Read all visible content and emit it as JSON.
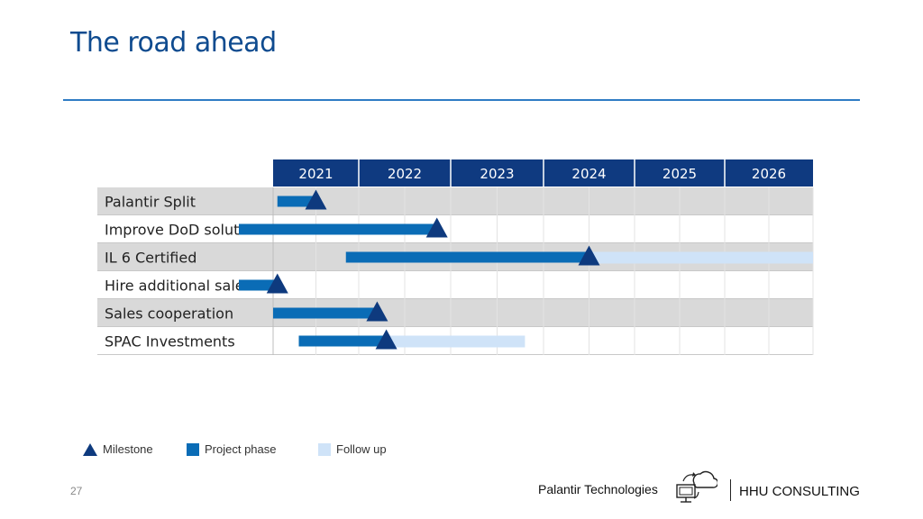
{
  "title": "The road ahead",
  "page_number": "27",
  "footer": {
    "company": "Palantir Technologies",
    "brand": "HHU CONSULTING",
    "logo_icon": "cloud-sync-computer-icon"
  },
  "colors": {
    "header": "#0f3a80",
    "phase": "#0a6cb6",
    "followup": "#cfe3f8",
    "milestone": "#0e3a7e",
    "row_shade": "#d9d9d9"
  },
  "legend": {
    "milestone": "Milestone",
    "phase": "Project phase",
    "followup": "Follow up"
  },
  "chart_data": {
    "type": "gantt",
    "years": [
      "2021",
      "2022",
      "2023",
      "2024",
      "2025",
      "2026"
    ],
    "rows": [
      {
        "label": "Palantir Split",
        "phase": [
          2021.05,
          2021.5
        ],
        "milestone": 2021.5,
        "followup": null
      },
      {
        "label": "Improve DoD solutions",
        "phase": [
          2020.6,
          2022.85
        ],
        "milestone": 2022.85,
        "followup": null
      },
      {
        "label": "IL 6 Certified",
        "phase": [
          2021.85,
          2024.5
        ],
        "milestone": 2024.5,
        "followup": [
          2024.5,
          2027.0
        ]
      },
      {
        "label": "Hire additional sales",
        "phase": [
          2020.6,
          2021.05
        ],
        "milestone": 2021.05,
        "followup": null
      },
      {
        "label": "Sales cooperation",
        "phase": [
          2021.0,
          2022.2
        ],
        "milestone": 2022.2,
        "followup": null
      },
      {
        "label": "SPAC Investments",
        "phase": [
          2021.3,
          2022.3
        ],
        "milestone": 2022.3,
        "followup": [
          2022.3,
          2023.8
        ]
      }
    ]
  }
}
